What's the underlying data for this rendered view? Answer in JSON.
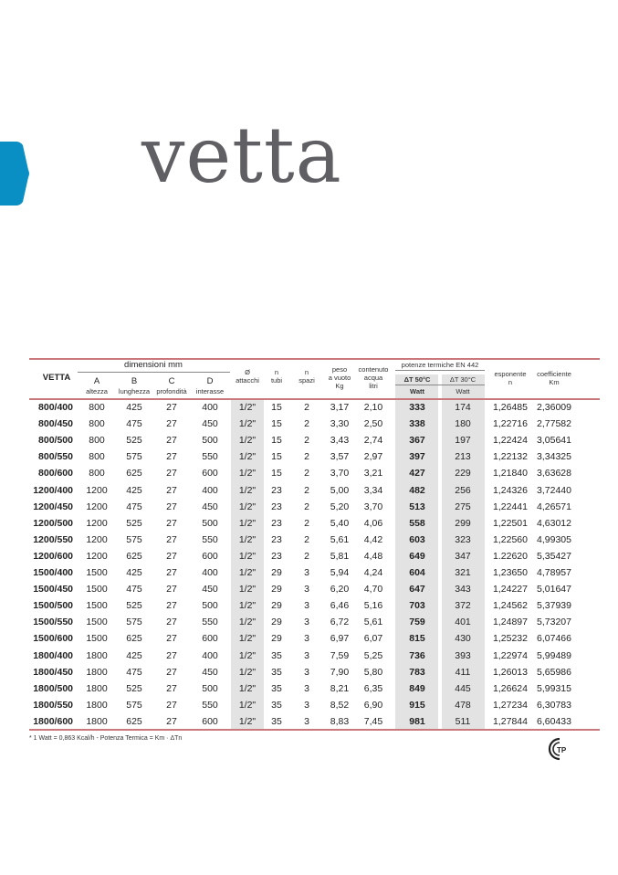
{
  "title": "vetta",
  "brand_color": "#0a8fc4",
  "rule_color": "#c9787b",
  "header": {
    "model": "VETTA",
    "dimensions_group": "dimensioni mm",
    "A": {
      "letter": "A",
      "label": "altezza"
    },
    "B": {
      "letter": "B",
      "label": "lunghezza"
    },
    "C": {
      "letter": "C",
      "label": "profondità"
    },
    "D": {
      "letter": "D",
      "label": "interasse"
    },
    "attacchi": {
      "l1": "Ø",
      "l2": "attacchi"
    },
    "tubi": {
      "l1": "n",
      "l2": "tubi"
    },
    "spazi": {
      "l1": "n",
      "l2": "spazi"
    },
    "peso": {
      "l1": "peso",
      "l2": "a vuoto",
      "l3": "Kg"
    },
    "contenuto": {
      "l1": "contenuto",
      "l2": "acqua",
      "l3": "litri"
    },
    "potenze_group": "potenze termiche EN 442",
    "dt50": "ΔT 50°C",
    "dt30": "ΔT 30°C",
    "watt50": "Watt",
    "watt30": "Watt",
    "esponente": {
      "l1": "esponente",
      "l2": "n"
    },
    "coefficiente": {
      "l1": "coefficiente",
      "l2": "Km"
    }
  },
  "rows": [
    [
      "800/400",
      "800",
      "425",
      "27",
      "400",
      "1/2\"",
      "15",
      "2",
      "3,17",
      "2,10",
      "333",
      "174",
      "1,26485",
      "2,36009"
    ],
    [
      "800/450",
      "800",
      "475",
      "27",
      "450",
      "1/2\"",
      "15",
      "2",
      "3,30",
      "2,50",
      "338",
      "180",
      "1,22716",
      "2,77582"
    ],
    [
      "800/500",
      "800",
      "525",
      "27",
      "500",
      "1/2\"",
      "15",
      "2",
      "3,43",
      "2,74",
      "367",
      "197",
      "1,22424",
      "3,05641"
    ],
    [
      "800/550",
      "800",
      "575",
      "27",
      "550",
      "1/2\"",
      "15",
      "2",
      "3,57",
      "2,97",
      "397",
      "213",
      "1,22132",
      "3,34325"
    ],
    [
      "800/600",
      "800",
      "625",
      "27",
      "600",
      "1/2\"",
      "15",
      "2",
      "3,70",
      "3,21",
      "427",
      "229",
      "1,21840",
      "3,63628"
    ],
    [
      "1200/400",
      "1200",
      "425",
      "27",
      "400",
      "1/2\"",
      "23",
      "2",
      "5,00",
      "3,34",
      "482",
      "256",
      "1,24326",
      "3,72440"
    ],
    [
      "1200/450",
      "1200",
      "475",
      "27",
      "450",
      "1/2\"",
      "23",
      "2",
      "5,20",
      "3,70",
      "513",
      "275",
      "1,22441",
      "4,26571"
    ],
    [
      "1200/500",
      "1200",
      "525",
      "27",
      "500",
      "1/2\"",
      "23",
      "2",
      "5,40",
      "4,06",
      "558",
      "299",
      "1,22501",
      "4,63012"
    ],
    [
      "1200/550",
      "1200",
      "575",
      "27",
      "550",
      "1/2\"",
      "23",
      "2",
      "5,61",
      "4,42",
      "603",
      "323",
      "1,22560",
      "4,99305"
    ],
    [
      "1200/600",
      "1200",
      "625",
      "27",
      "600",
      "1/2\"",
      "23",
      "2",
      "5,81",
      "4,48",
      "649",
      "347",
      "1.22620",
      "5,35427"
    ],
    [
      "1500/400",
      "1500",
      "425",
      "27",
      "400",
      "1/2\"",
      "29",
      "3",
      "5,94",
      "4,24",
      "604",
      "321",
      "1,23650",
      "4,78957"
    ],
    [
      "1500/450",
      "1500",
      "475",
      "27",
      "450",
      "1/2\"",
      "29",
      "3",
      "6,20",
      "4,70",
      "647",
      "343",
      "1,24227",
      "5,01647"
    ],
    [
      "1500/500",
      "1500",
      "525",
      "27",
      "500",
      "1/2\"",
      "29",
      "3",
      "6,46",
      "5,16",
      "703",
      "372",
      "1,24562",
      "5,37939"
    ],
    [
      "1500/550",
      "1500",
      "575",
      "27",
      "550",
      "1/2\"",
      "29",
      "3",
      "6,72",
      "5,61",
      "759",
      "401",
      "1,24897",
      "5,73207"
    ],
    [
      "1500/600",
      "1500",
      "625",
      "27",
      "600",
      "1/2\"",
      "29",
      "3",
      "6,97",
      "6,07",
      "815",
      "430",
      "1,25232",
      "6,07466"
    ],
    [
      "1800/400",
      "1800",
      "425",
      "27",
      "400",
      "1/2\"",
      "35",
      "3",
      "7,59",
      "5,25",
      "736",
      "393",
      "1,22974",
      "5,99489"
    ],
    [
      "1800/450",
      "1800",
      "475",
      "27",
      "450",
      "1/2\"",
      "35",
      "3",
      "7,90",
      "5,80",
      "783",
      "411",
      "1,26013",
      "5,65986"
    ],
    [
      "1800/500",
      "1800",
      "525",
      "27",
      "500",
      "1/2\"",
      "35",
      "3",
      "8,21",
      "6,35",
      "849",
      "445",
      "1,26624",
      "5,99315"
    ],
    [
      "1800/550",
      "1800",
      "575",
      "27",
      "550",
      "1/2\"",
      "35",
      "3",
      "8,52",
      "6,90",
      "915",
      "478",
      "1,27234",
      "6,30783"
    ],
    [
      "1800/600",
      "1800",
      "625",
      "27",
      "600",
      "1/2\"",
      "35",
      "3",
      "8,83",
      "7,45",
      "981",
      "511",
      "1,27844",
      "6,60433"
    ]
  ],
  "footnote": "* 1 Watt = 0,863 Kcal/h - Potenza Termica = Km · ΔTn",
  "certification_logo": {
    "icon": "certification-mark-icon",
    "text": "TP"
  }
}
